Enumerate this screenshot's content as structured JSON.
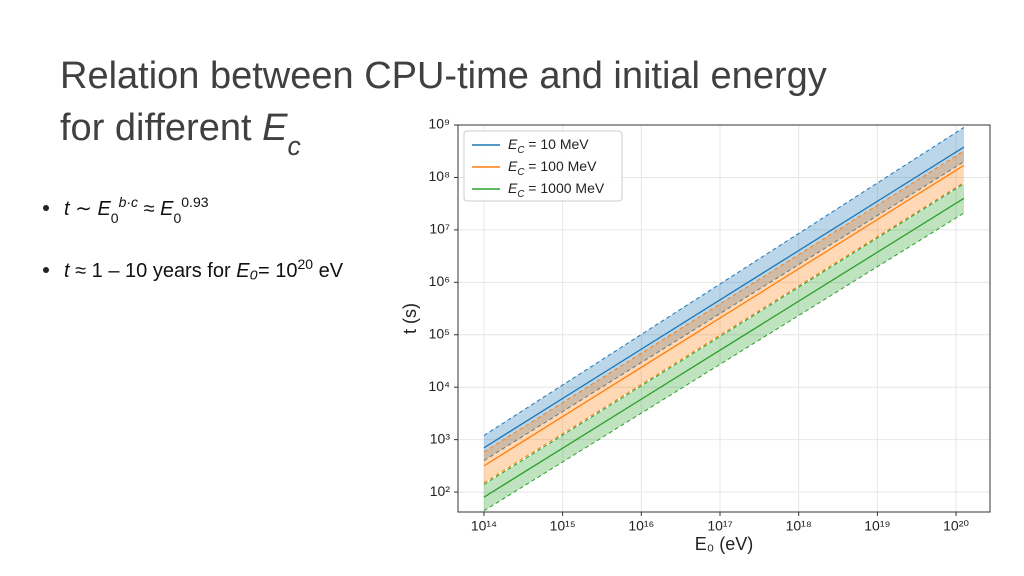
{
  "slide": {
    "title_lines": [
      [
        {
          "text": "Relation between CPU-time and initial energy"
        }
      ],
      [
        {
          "text": "for different "
        },
        {
          "text": "E",
          "style": "italic"
        },
        {
          "text": "c",
          "style": "sub-italic"
        }
      ]
    ],
    "bullets": [
      [
        {
          "text": "t",
          "style": "italic"
        },
        {
          "text": " ∼ "
        },
        {
          "text": "E",
          "style": "italic"
        },
        {
          "text": "0",
          "style": "sub"
        },
        {
          "text": "b·c",
          "style": "sup-italic"
        },
        {
          "text": " ≈ "
        },
        {
          "text": "E",
          "style": "italic"
        },
        {
          "text": "0",
          "style": "sub"
        },
        {
          "text": "0.93",
          "style": "sup"
        }
      ],
      [
        {
          "text": "t",
          "style": "italic"
        },
        {
          "text": " ≈ 1 – 10 years for "
        },
        {
          "text": "E₀",
          "style": "italic"
        },
        {
          "text": "= "
        },
        {
          "text": "10"
        },
        {
          "text": "20",
          "style": "sup"
        },
        {
          "text": " eV"
        }
      ]
    ]
  },
  "chart_data": {
    "type": "line-band",
    "xlabel": "E₀ (eV)",
    "ylabel": "t (s)",
    "log_x": true,
    "log_y": true,
    "grid": true,
    "legend": "upper-left",
    "legend_symbol": "E",
    "legend_subscript": "C",
    "x": [
      100000000000000.0,
      1.26e+20
    ],
    "series": [
      {
        "name": " = 10 MeV",
        "color": "#1f77b4",
        "values": [
          700,
          380000000
        ],
        "lower": [
          400,
          200000000
        ],
        "upper": [
          1200,
          900000000
        ]
      },
      {
        "name": " = 100 MeV",
        "color": "#ff7f0e",
        "values": [
          316,
          170000000
        ],
        "lower": [
          150,
          80000000
        ],
        "upper": [
          580,
          320000000
        ]
      },
      {
        "name": " = 1000 MeV",
        "color": "#2ca02c",
        "values": [
          80,
          40000000
        ],
        "lower": [
          44,
          21000000
        ],
        "upper": [
          140,
          76000000
        ]
      }
    ],
    "xlim": [
      46800000000000.0,
      2.7e+20
    ],
    "ylim": [
      41.7,
      1000000000.0
    ],
    "xticks": [
      {
        "value": 100000000000000.0,
        "label": "10¹⁴"
      },
      {
        "value": 1000000000000000.0,
        "label": "10¹⁵"
      },
      {
        "value": 1e+16,
        "label": "10¹⁶"
      },
      {
        "value": 1e+17,
        "label": "10¹⁷"
      },
      {
        "value": 1e+18,
        "label": "10¹⁸"
      },
      {
        "value": 1e+19,
        "label": "10¹⁹"
      },
      {
        "value": 1e+20,
        "label": "10²⁰"
      }
    ],
    "yticks": [
      {
        "value": 100,
        "label": "10²"
      },
      {
        "value": 1000,
        "label": "10³"
      },
      {
        "value": 10000,
        "label": "10⁴"
      },
      {
        "value": 100000,
        "label": "10⁵"
      },
      {
        "value": 1000000,
        "label": "10⁶"
      },
      {
        "value": 10000000,
        "label": "10⁷"
      },
      {
        "value": 100000000,
        "label": "10⁸"
      },
      {
        "value": 1000000000,
        "label": "10⁹"
      }
    ]
  }
}
